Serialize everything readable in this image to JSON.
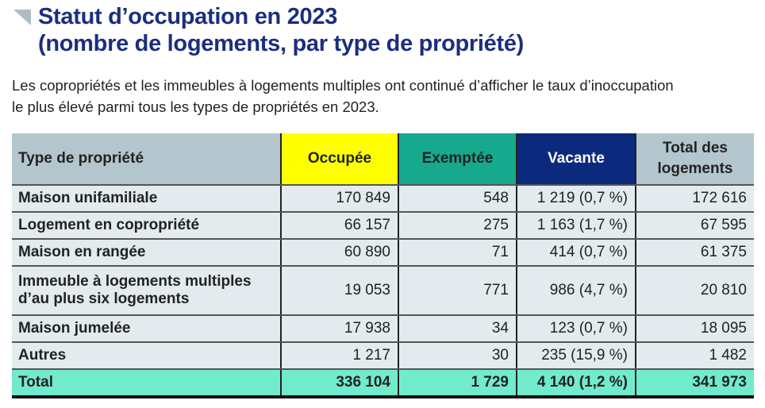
{
  "title_line1": "Statut d’occupation en 2023",
  "title_line2": "(nombre de logements, par type de propriété)",
  "intro_line1": "Les copropriétés et les immeubles à logements multiples ont continué d’afficher le taux d’inoccupation",
  "intro_line2": "le plus élevé parmi tous les types de propriétés en 2023.",
  "headers": {
    "type": "Type de propriété",
    "occupee": "Occupée",
    "exemptee": "Exemptée",
    "vacante": "Vacante",
    "total_l1": "Total des",
    "total_l2": "logements"
  },
  "colors": {
    "occupee": "#ffff00",
    "exemptee": "#16a98e",
    "vacante": "#0b2a7d",
    "total_row": "#72ebcc"
  },
  "rows": [
    {
      "type": "Maison unifamiliale",
      "occupee": "170 849",
      "exemptee": "548",
      "vacante": "1 219 (0,7 %)",
      "total": "172 616"
    },
    {
      "type": "Logement en copropriété",
      "occupee": "66 157",
      "exemptee": "275",
      "vacante": "1 163 (1,7 %)",
      "total": "67 595"
    },
    {
      "type": "Maison en rangée",
      "occupee": "60 890",
      "exemptee": "71",
      "vacante": "414 (0,7 %)",
      "total": "61 375"
    },
    {
      "type_l1": "Immeuble à logements multiples",
      "type_l2": "d’au plus six logements",
      "occupee": "19 053",
      "exemptee": "771",
      "vacante": "986 (4,7 %)",
      "total": "20 810"
    },
    {
      "type": "Maison jumelée",
      "occupee": "17 938",
      "exemptee": "34",
      "vacante": "123 (0,7 %)",
      "total": "18 095"
    },
    {
      "type": "Autres",
      "occupee": "1 217",
      "exemptee": "30",
      "vacante": "235 (15,9 %)",
      "total": "1 482"
    }
  ],
  "total_row": {
    "type": "Total",
    "occupee": "336 104",
    "exemptee": "1 729",
    "vacante": "4 140 (1,2 %)",
    "total": "341 973"
  }
}
